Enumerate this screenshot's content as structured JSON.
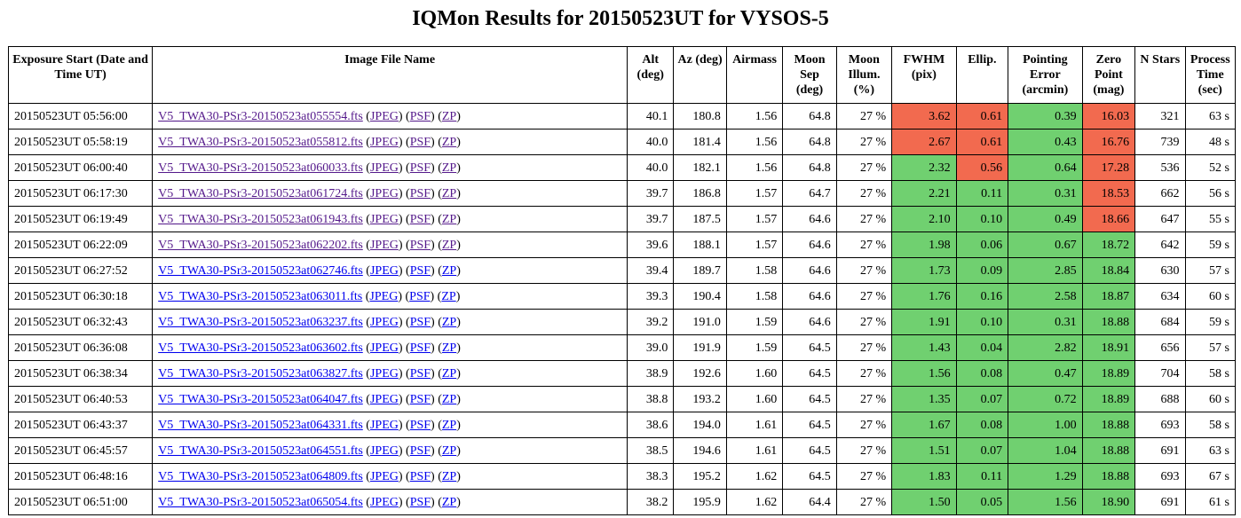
{
  "title": "IQMon Results for 20150523UT for VYSOS-5",
  "colors": {
    "good": "#70d070",
    "bad": "#f26a4f",
    "link": "#0000ee",
    "visited_link": "#551a8b"
  },
  "headers": [
    "Exposure Start (Date and Time UT)",
    "Image File Name",
    "Alt (deg)",
    "Az (deg)",
    "Airmass",
    "Moon Sep (deg)",
    "Moon Illum. (%)",
    "FWHM (pix)",
    "Ellip.",
    "Pointing Error (arcmin)",
    "Zero Point (mag)",
    "N Stars",
    "Process Time (sec)"
  ],
  "link_labels": {
    "jpeg": "JPEG",
    "psf": "PSF",
    "zp": "ZP"
  },
  "rows": [
    {
      "time": "20150523UT 05:56:00",
      "file": "V5_TWA30-PSr3-20150523at055554.fts",
      "visited": true,
      "alt": "40.1",
      "az": "180.8",
      "airmass": "1.56",
      "moon_sep": "64.8",
      "moon_illum": "27 %",
      "fwhm": "3.62",
      "fwhm_ok": false,
      "ellip": "0.61",
      "ellip_ok": false,
      "pointing": "0.39",
      "pointing_ok": true,
      "zp": "16.03",
      "zp_ok": false,
      "nstars": "321",
      "ptime": "63 s"
    },
    {
      "time": "20150523UT 05:58:19",
      "file": "V5_TWA30-PSr3-20150523at055812.fts",
      "visited": true,
      "alt": "40.0",
      "az": "181.4",
      "airmass": "1.56",
      "moon_sep": "64.8",
      "moon_illum": "27 %",
      "fwhm": "2.67",
      "fwhm_ok": false,
      "ellip": "0.61",
      "ellip_ok": false,
      "pointing": "0.43",
      "pointing_ok": true,
      "zp": "16.76",
      "zp_ok": false,
      "nstars": "739",
      "ptime": "48 s"
    },
    {
      "time": "20150523UT 06:00:40",
      "file": "V5_TWA30-PSr3-20150523at060033.fts",
      "visited": true,
      "alt": "40.0",
      "az": "182.1",
      "airmass": "1.56",
      "moon_sep": "64.8",
      "moon_illum": "27 %",
      "fwhm": "2.32",
      "fwhm_ok": true,
      "ellip": "0.56",
      "ellip_ok": false,
      "pointing": "0.64",
      "pointing_ok": true,
      "zp": "17.28",
      "zp_ok": false,
      "nstars": "536",
      "ptime": "52 s"
    },
    {
      "time": "20150523UT 06:17:30",
      "file": "V5_TWA30-PSr3-20150523at061724.fts",
      "visited": true,
      "alt": "39.7",
      "az": "186.8",
      "airmass": "1.57",
      "moon_sep": "64.7",
      "moon_illum": "27 %",
      "fwhm": "2.21",
      "fwhm_ok": true,
      "ellip": "0.11",
      "ellip_ok": true,
      "pointing": "0.31",
      "pointing_ok": true,
      "zp": "18.53",
      "zp_ok": false,
      "nstars": "662",
      "ptime": "56 s"
    },
    {
      "time": "20150523UT 06:19:49",
      "file": "V5_TWA30-PSr3-20150523at061943.fts",
      "visited": true,
      "alt": "39.7",
      "az": "187.5",
      "airmass": "1.57",
      "moon_sep": "64.6",
      "moon_illum": "27 %",
      "fwhm": "2.10",
      "fwhm_ok": true,
      "ellip": "0.10",
      "ellip_ok": true,
      "pointing": "0.49",
      "pointing_ok": true,
      "zp": "18.66",
      "zp_ok": false,
      "nstars": "647",
      "ptime": "55 s"
    },
    {
      "time": "20150523UT 06:22:09",
      "file": "V5_TWA30-PSr3-20150523at062202.fts",
      "visited": true,
      "alt": "39.6",
      "az": "188.1",
      "airmass": "1.57",
      "moon_sep": "64.6",
      "moon_illum": "27 %",
      "fwhm": "1.98",
      "fwhm_ok": true,
      "ellip": "0.06",
      "ellip_ok": true,
      "pointing": "0.67",
      "pointing_ok": true,
      "zp": "18.72",
      "zp_ok": true,
      "nstars": "642",
      "ptime": "59 s"
    },
    {
      "time": "20150523UT 06:27:52",
      "file": "V5_TWA30-PSr3-20150523at062746.fts",
      "visited": false,
      "alt": "39.4",
      "az": "189.7",
      "airmass": "1.58",
      "moon_sep": "64.6",
      "moon_illum": "27 %",
      "fwhm": "1.73",
      "fwhm_ok": true,
      "ellip": "0.09",
      "ellip_ok": true,
      "pointing": "2.85",
      "pointing_ok": true,
      "zp": "18.84",
      "zp_ok": true,
      "nstars": "630",
      "ptime": "57 s"
    },
    {
      "time": "20150523UT 06:30:18",
      "file": "V5_TWA30-PSr3-20150523at063011.fts",
      "visited": false,
      "alt": "39.3",
      "az": "190.4",
      "airmass": "1.58",
      "moon_sep": "64.6",
      "moon_illum": "27 %",
      "fwhm": "1.76",
      "fwhm_ok": true,
      "ellip": "0.16",
      "ellip_ok": true,
      "pointing": "2.58",
      "pointing_ok": true,
      "zp": "18.87",
      "zp_ok": true,
      "nstars": "634",
      "ptime": "60 s"
    },
    {
      "time": "20150523UT 06:32:43",
      "file": "V5_TWA30-PSr3-20150523at063237.fts",
      "visited": false,
      "alt": "39.2",
      "az": "191.0",
      "airmass": "1.59",
      "moon_sep": "64.6",
      "moon_illum": "27 %",
      "fwhm": "1.91",
      "fwhm_ok": true,
      "ellip": "0.10",
      "ellip_ok": true,
      "pointing": "0.31",
      "pointing_ok": true,
      "zp": "18.88",
      "zp_ok": true,
      "nstars": "684",
      "ptime": "59 s"
    },
    {
      "time": "20150523UT 06:36:08",
      "file": "V5_TWA30-PSr3-20150523at063602.fts",
      "visited": false,
      "alt": "39.0",
      "az": "191.9",
      "airmass": "1.59",
      "moon_sep": "64.5",
      "moon_illum": "27 %",
      "fwhm": "1.43",
      "fwhm_ok": true,
      "ellip": "0.04",
      "ellip_ok": true,
      "pointing": "2.82",
      "pointing_ok": true,
      "zp": "18.91",
      "zp_ok": true,
      "nstars": "656",
      "ptime": "57 s"
    },
    {
      "time": "20150523UT 06:38:34",
      "file": "V5_TWA30-PSr3-20150523at063827.fts",
      "visited": false,
      "alt": "38.9",
      "az": "192.6",
      "airmass": "1.60",
      "moon_sep": "64.5",
      "moon_illum": "27 %",
      "fwhm": "1.56",
      "fwhm_ok": true,
      "ellip": "0.08",
      "ellip_ok": true,
      "pointing": "0.47",
      "pointing_ok": true,
      "zp": "18.89",
      "zp_ok": true,
      "nstars": "704",
      "ptime": "58 s"
    },
    {
      "time": "20150523UT 06:40:53",
      "file": "V5_TWA30-PSr3-20150523at064047.fts",
      "visited": false,
      "alt": "38.8",
      "az": "193.2",
      "airmass": "1.60",
      "moon_sep": "64.5",
      "moon_illum": "27 %",
      "fwhm": "1.35",
      "fwhm_ok": true,
      "ellip": "0.07",
      "ellip_ok": true,
      "pointing": "0.72",
      "pointing_ok": true,
      "zp": "18.89",
      "zp_ok": true,
      "nstars": "688",
      "ptime": "60 s"
    },
    {
      "time": "20150523UT 06:43:37",
      "file": "V5_TWA30-PSr3-20150523at064331.fts",
      "visited": false,
      "alt": "38.6",
      "az": "194.0",
      "airmass": "1.61",
      "moon_sep": "64.5",
      "moon_illum": "27 %",
      "fwhm": "1.67",
      "fwhm_ok": true,
      "ellip": "0.08",
      "ellip_ok": true,
      "pointing": "1.00",
      "pointing_ok": true,
      "zp": "18.88",
      "zp_ok": true,
      "nstars": "693",
      "ptime": "58 s"
    },
    {
      "time": "20150523UT 06:45:57",
      "file": "V5_TWA30-PSr3-20150523at064551.fts",
      "visited": false,
      "alt": "38.5",
      "az": "194.6",
      "airmass": "1.61",
      "moon_sep": "64.5",
      "moon_illum": "27 %",
      "fwhm": "1.51",
      "fwhm_ok": true,
      "ellip": "0.07",
      "ellip_ok": true,
      "pointing": "1.04",
      "pointing_ok": true,
      "zp": "18.88",
      "zp_ok": true,
      "nstars": "691",
      "ptime": "63 s"
    },
    {
      "time": "20150523UT 06:48:16",
      "file": "V5_TWA30-PSr3-20150523at064809.fts",
      "visited": false,
      "alt": "38.3",
      "az": "195.2",
      "airmass": "1.62",
      "moon_sep": "64.5",
      "moon_illum": "27 %",
      "fwhm": "1.83",
      "fwhm_ok": true,
      "ellip": "0.11",
      "ellip_ok": true,
      "pointing": "1.29",
      "pointing_ok": true,
      "zp": "18.88",
      "zp_ok": true,
      "nstars": "693",
      "ptime": "67 s"
    },
    {
      "time": "20150523UT 06:51:00",
      "file": "V5_TWA30-PSr3-20150523at065054.fts",
      "visited": false,
      "alt": "38.2",
      "az": "195.9",
      "airmass": "1.62",
      "moon_sep": "64.4",
      "moon_illum": "27 %",
      "fwhm": "1.50",
      "fwhm_ok": true,
      "ellip": "0.05",
      "ellip_ok": true,
      "pointing": "1.56",
      "pointing_ok": true,
      "zp": "18.90",
      "zp_ok": true,
      "nstars": "691",
      "ptime": "61 s"
    }
  ]
}
